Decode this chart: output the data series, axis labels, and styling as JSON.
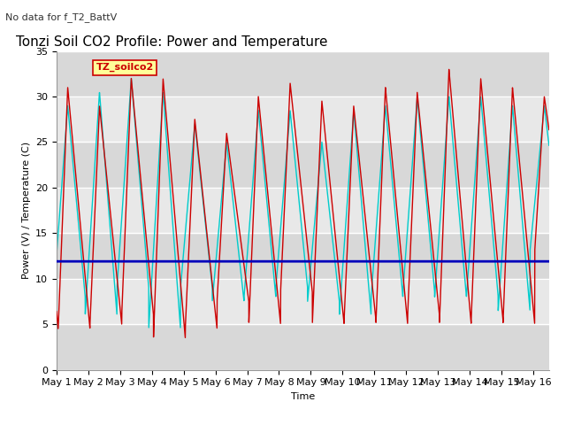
{
  "title": "Tonzi Soil CO2 Profile: Power and Temperature",
  "subtitle": "No data for f_T2_BattV",
  "ylabel": "Power (V) / Temperature (C)",
  "xlabel": "Time",
  "ylim": [
    0,
    35
  ],
  "xlim_days": 15.5,
  "voltage_value": 11.9,
  "background_color": "#ffffff",
  "plot_bg_color": "#e8e8e8",
  "grid_color": "#d0d0d0",
  "cr23x_temp_color": "#cc0000",
  "cr23x_volt_color": "#0000bb",
  "cr10x_temp_color": "#00cccc",
  "legend_box_color": "#ffff99",
  "legend_box_border": "#cc0000",
  "annotation_text": "TZ_soilco2",
  "tick_labels": [
    "May 1",
    "May 2",
    "May 3",
    "May 4",
    "May 5",
    "May 6",
    "May 7",
    "May 8",
    "May 9",
    "May 10",
    "May 11",
    "May 12",
    "May 13",
    "May 14",
    "May 15",
    "May 16"
  ],
  "font_size": 8,
  "title_font_size": 11
}
